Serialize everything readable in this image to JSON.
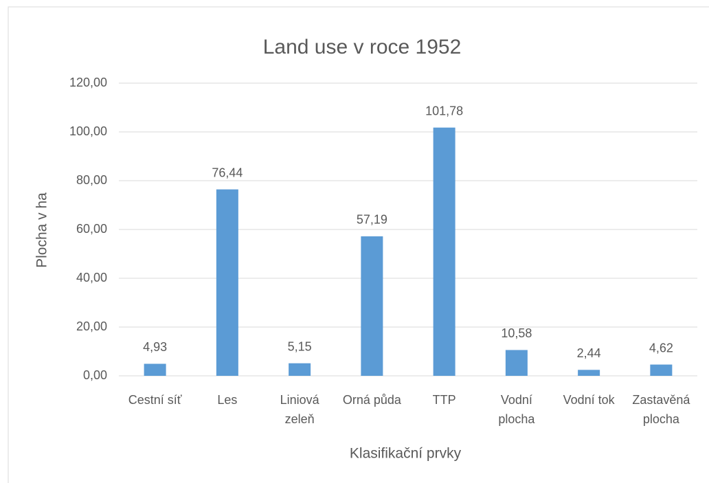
{
  "chart_data": {
    "type": "bar",
    "title": "Land use v roce 1952",
    "x_label": "Klasifikační prvky",
    "y_label": "Plocha v ha",
    "categories": [
      "Cestní síť",
      "Les",
      "Liniová zeleň",
      "Orná půda",
      "TTP",
      "Vodní plocha",
      "Vodní tok",
      "Zastavěná plocha"
    ],
    "values": [
      4.93,
      76.44,
      5.15,
      57.19,
      101.78,
      10.58,
      2.44,
      4.62
    ],
    "value_labels": [
      "4,93",
      "76,44",
      "5,15",
      "57,19",
      "101,78",
      "10,58",
      "2,44",
      "4,62"
    ],
    "color": "#5b9bd5",
    "ylim": [
      0,
      120
    ],
    "yticks": [
      {
        "value": 0,
        "label": "0,00"
      },
      {
        "value": 20,
        "label": "20,00"
      },
      {
        "value": 40,
        "label": "40,00"
      },
      {
        "value": 60,
        "label": "60,00"
      },
      {
        "value": 80,
        "label": "80,00"
      },
      {
        "value": 100,
        "label": "100,00"
      },
      {
        "value": 120,
        "label": "120,00"
      }
    ],
    "grid": true
  }
}
